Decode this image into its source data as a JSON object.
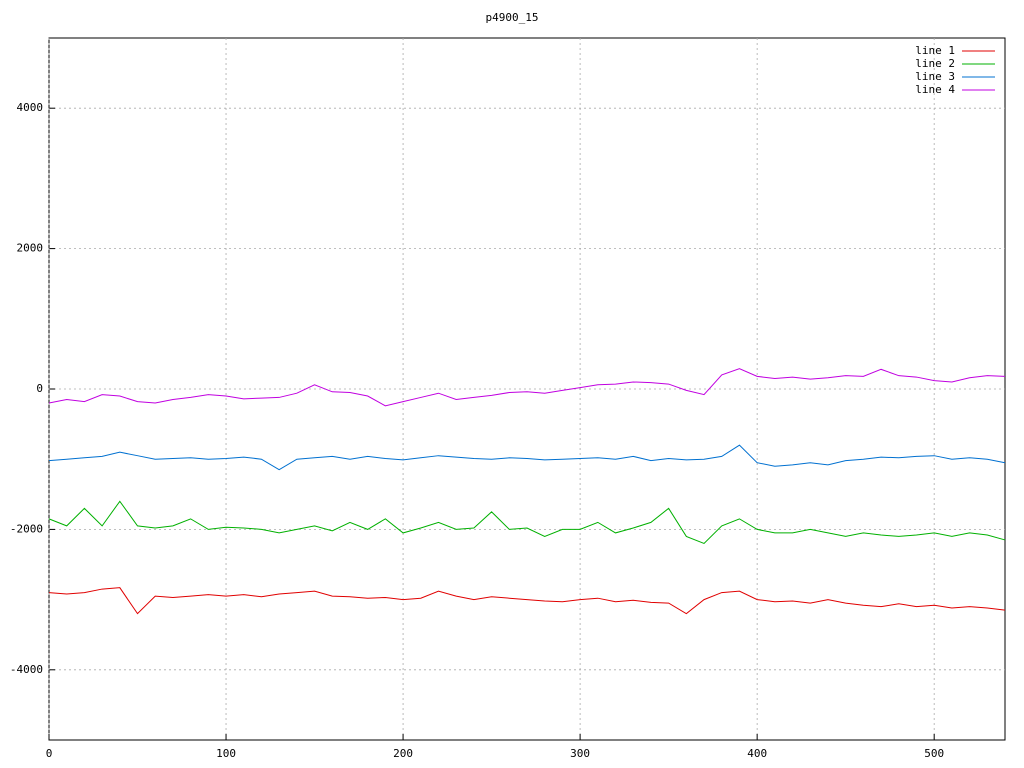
{
  "chart_data": {
    "type": "line",
    "title": "p4900_15",
    "x": [
      0,
      10,
      20,
      30,
      40,
      50,
      60,
      70,
      80,
      90,
      100,
      110,
      120,
      130,
      140,
      150,
      160,
      170,
      180,
      190,
      200,
      210,
      220,
      230,
      240,
      250,
      260,
      270,
      280,
      290,
      300,
      310,
      320,
      330,
      340,
      350,
      360,
      370,
      380,
      390,
      400,
      410,
      420,
      430,
      440,
      450,
      460,
      470,
      480,
      490,
      500,
      510,
      520,
      530,
      540
    ],
    "xlim": [
      0,
      540
    ],
    "xticks": [
      0,
      100,
      200,
      300,
      400,
      500
    ],
    "ylim": [
      -5000,
      5000
    ],
    "yticks": [
      -4000,
      -2000,
      0,
      2000,
      4000
    ],
    "grid": true,
    "legend": "top-right",
    "series": [
      {
        "name": "line 1",
        "color": "#e00000",
        "values": [
          -2900,
          -2920,
          -2900,
          -2850,
          -2830,
          -3200,
          -2950,
          -2970,
          -2950,
          -2930,
          -2950,
          -2930,
          -2960,
          -2920,
          -2900,
          -2880,
          -2950,
          -2960,
          -2980,
          -2970,
          -3000,
          -2980,
          -2880,
          -2950,
          -3000,
          -2960,
          -2980,
          -3000,
          -3020,
          -3030,
          -3000,
          -2980,
          -3030,
          -3010,
          -3040,
          -3050,
          -3200,
          -3000,
          -2900,
          -2880,
          -3000,
          -3030,
          -3020,
          -3050,
          -3000,
          -3050,
          -3080,
          -3100,
          -3060,
          -3100,
          -3080,
          -3120,
          -3100,
          -3120,
          -3150
        ]
      },
      {
        "name": "line 2",
        "color": "#00b000",
        "values": [
          -1850,
          -1950,
          -1700,
          -1950,
          -1600,
          -1950,
          -1980,
          -1950,
          -1850,
          -2000,
          -1970,
          -1980,
          -2000,
          -2050,
          -2000,
          -1950,
          -2020,
          -1900,
          -2000,
          -1850,
          -2050,
          -1980,
          -1900,
          -2000,
          -1980,
          -1750,
          -2000,
          -1980,
          -2100,
          -2000,
          -2000,
          -1900,
          -2050,
          -1980,
          -1900,
          -1700,
          -2100,
          -2200,
          -1950,
          -1850,
          -2000,
          -2050,
          -2050,
          -2000,
          -2050,
          -2100,
          -2050,
          -2080,
          -2100,
          -2080,
          -2050,
          -2100,
          -2050,
          -2080,
          -2150
        ]
      },
      {
        "name": "line 3",
        "color": "#0070d0",
        "values": [
          -1020,
          -1000,
          -980,
          -960,
          -900,
          -950,
          -1000,
          -990,
          -980,
          -1000,
          -990,
          -970,
          -1000,
          -1150,
          -1000,
          -980,
          -960,
          -1000,
          -960,
          -990,
          -1010,
          -980,
          -950,
          -970,
          -990,
          -1000,
          -980,
          -990,
          -1010,
          -1000,
          -990,
          -980,
          -1000,
          -960,
          -1020,
          -990,
          -1010,
          -1000,
          -960,
          -800,
          -1050,
          -1100,
          -1080,
          -1050,
          -1080,
          -1020,
          -1000,
          -970,
          -980,
          -960,
          -950,
          -1000,
          -980,
          -1000,
          -1050
        ]
      },
      {
        "name": "line 4",
        "color": "#c000e0",
        "values": [
          -200,
          -150,
          -180,
          -80,
          -100,
          -180,
          -200,
          -150,
          -120,
          -80,
          -100,
          -140,
          -130,
          -120,
          -60,
          60,
          -40,
          -50,
          -100,
          -240,
          -180,
          -120,
          -60,
          -150,
          -120,
          -90,
          -50,
          -40,
          -60,
          -20,
          20,
          60,
          70,
          100,
          90,
          70,
          -20,
          -80,
          200,
          290,
          180,
          150,
          170,
          140,
          160,
          190,
          180,
          280,
          190,
          170,
          120,
          100,
          160,
          190,
          180
        ]
      }
    ]
  }
}
